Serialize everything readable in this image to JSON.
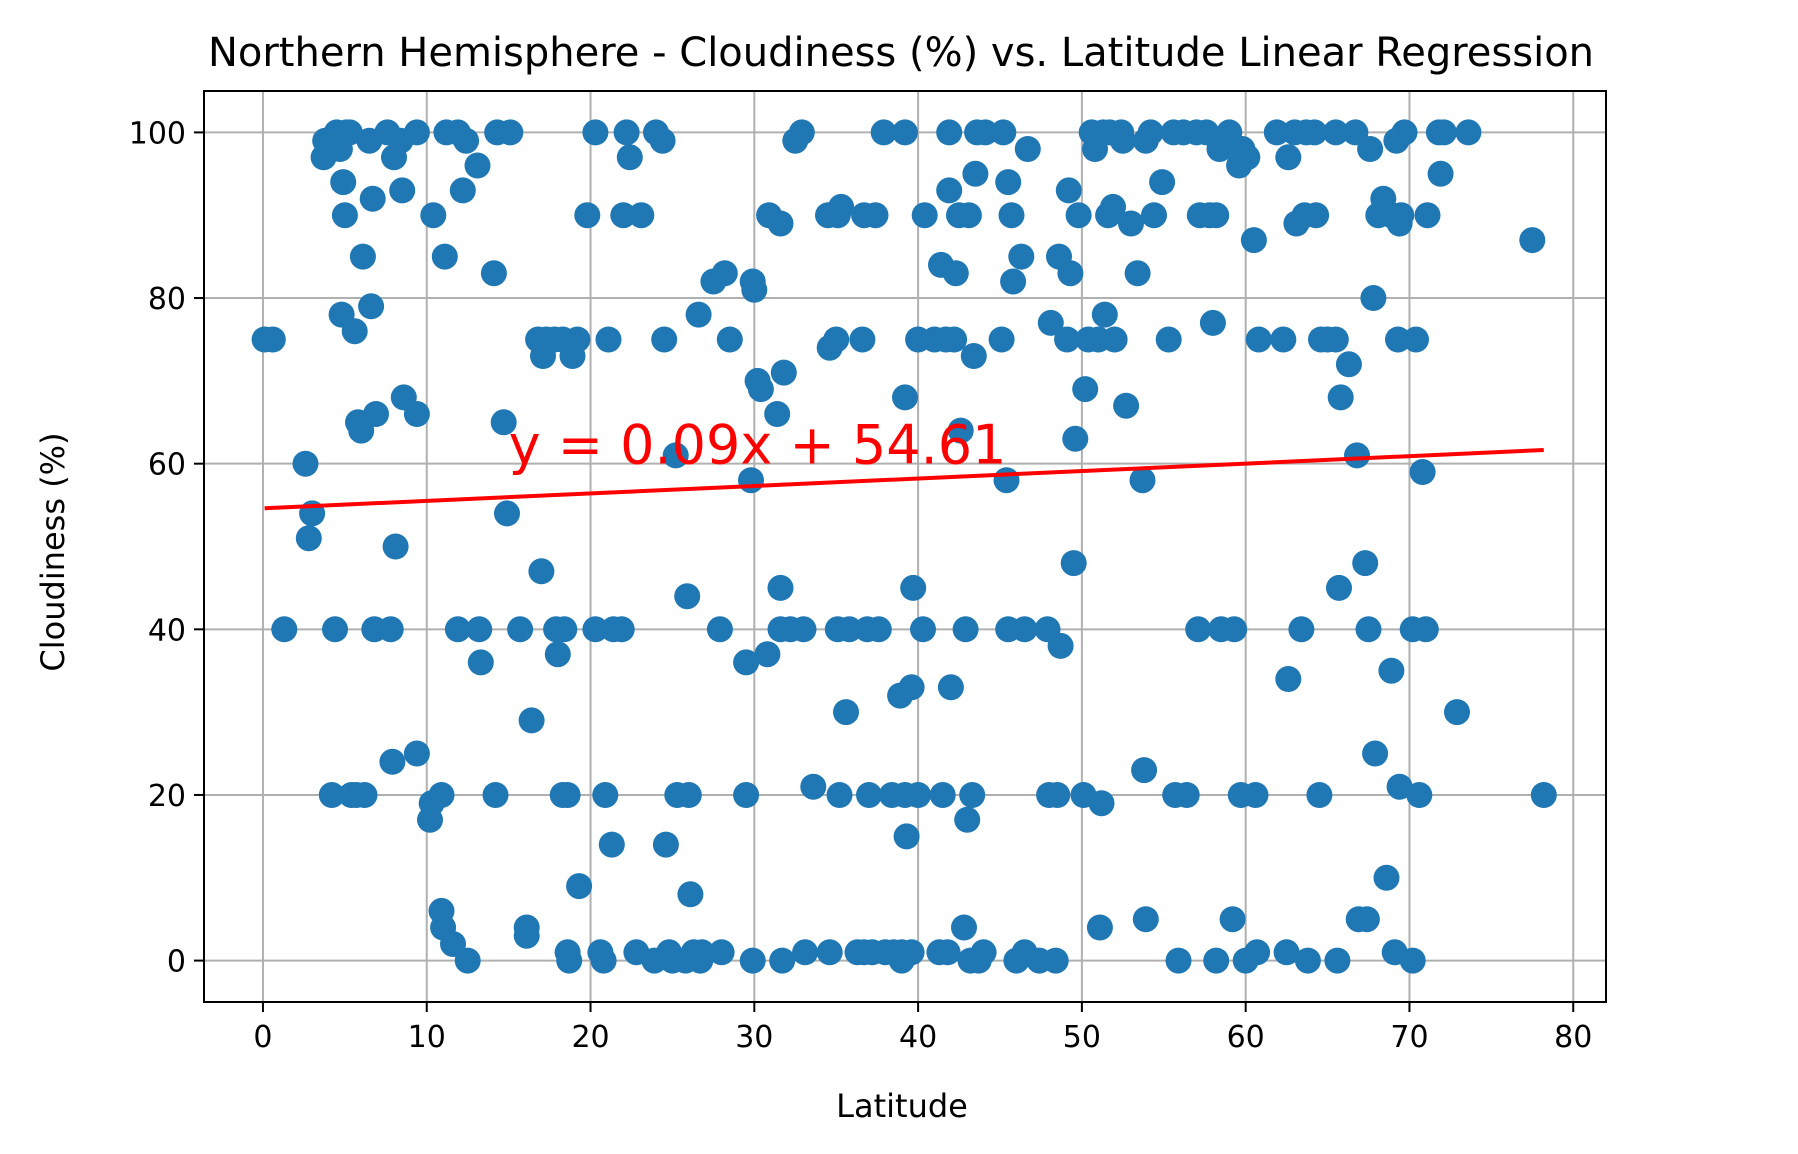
{
  "chart_data": {
    "type": "scatter",
    "title": "Northern Hemisphere - Cloudiness (%) vs. Latitude Linear Regression",
    "xlabel": "Latitude",
    "ylabel": "Cloudiness (%)",
    "xlim": [
      -3.6,
      82
    ],
    "ylim": [
      -5,
      105
    ],
    "xticks": [
      0,
      10,
      20,
      30,
      40,
      50,
      60,
      70,
      80
    ],
    "yticks": [
      0,
      20,
      40,
      60,
      80,
      100
    ],
    "grid": true,
    "point_color": "#1f77b4",
    "regression": {
      "slope": 0.09,
      "intercept": 54.61,
      "x_range": [
        0.1,
        78.2
      ],
      "color": "#ff0000",
      "equation_label": "y = 0.09x + 54.61",
      "label_at": [
        15,
        60
      ]
    },
    "points": [
      [
        0.1,
        75
      ],
      [
        0.6,
        75
      ],
      [
        1.3,
        40
      ],
      [
        2.6,
        60
      ],
      [
        2.8,
        51
      ],
      [
        3.0,
        54
      ],
      [
        3.7,
        97
      ],
      [
        3.8,
        99
      ],
      [
        4.2,
        20
      ],
      [
        4.3,
        99
      ],
      [
        4.4,
        40
      ],
      [
        4.5,
        100
      ],
      [
        4.7,
        98
      ],
      [
        4.8,
        78
      ],
      [
        4.9,
        94
      ],
      [
        5.0,
        90
      ],
      [
        5.1,
        100
      ],
      [
        5.3,
        100
      ],
      [
        5.4,
        20
      ],
      [
        5.6,
        76
      ],
      [
        5.7,
        20
      ],
      [
        5.8,
        65
      ],
      [
        6.0,
        64
      ],
      [
        6.1,
        85
      ],
      [
        6.2,
        20
      ],
      [
        6.5,
        99
      ],
      [
        6.6,
        79
      ],
      [
        6.7,
        92
      ],
      [
        6.8,
        40
      ],
      [
        6.9,
        66
      ],
      [
        7.6,
        100
      ],
      [
        7.8,
        40
      ],
      [
        7.9,
        24
      ],
      [
        8.0,
        97
      ],
      [
        8.1,
        50
      ],
      [
        8.4,
        99
      ],
      [
        8.5,
        93
      ],
      [
        8.6,
        68
      ],
      [
        9.4,
        100
      ],
      [
        9.4,
        66
      ],
      [
        9.4,
        25
      ],
      [
        10.2,
        17
      ],
      [
        10.3,
        19
      ],
      [
        10.4,
        90
      ],
      [
        10.9,
        20
      ],
      [
        10.9,
        6
      ],
      [
        11.0,
        4
      ],
      [
        11.1,
        85
      ],
      [
        11.2,
        100
      ],
      [
        11.6,
        2
      ],
      [
        11.9,
        100
      ],
      [
        11.9,
        40
      ],
      [
        12.2,
        93
      ],
      [
        12.4,
        99
      ],
      [
        12.5,
        0
      ],
      [
        13.1,
        96
      ],
      [
        13.2,
        40
      ],
      [
        13.3,
        36
      ],
      [
        14.1,
        83
      ],
      [
        14.2,
        20
      ],
      [
        14.3,
        100
      ],
      [
        14.7,
        65
      ],
      [
        14.9,
        54
      ],
      [
        15.1,
        100
      ],
      [
        15.7,
        40
      ],
      [
        16.1,
        4
      ],
      [
        16.1,
        3
      ],
      [
        16.4,
        29
      ],
      [
        16.8,
        75
      ],
      [
        17.0,
        47
      ],
      [
        17.1,
        73
      ],
      [
        17.3,
        75
      ],
      [
        17.8,
        75
      ],
      [
        17.9,
        40
      ],
      [
        18.0,
        37
      ],
      [
        18.3,
        75
      ],
      [
        18.3,
        20
      ],
      [
        18.4,
        40
      ],
      [
        18.6,
        20
      ],
      [
        18.6,
        1
      ],
      [
        18.7,
        0
      ],
      [
        18.9,
        73
      ],
      [
        19.2,
        75
      ],
      [
        19.3,
        9
      ],
      [
        19.8,
        90
      ],
      [
        20.3,
        100
      ],
      [
        20.3,
        40
      ],
      [
        20.6,
        1
      ],
      [
        20.8,
        0
      ],
      [
        20.9,
        20
      ],
      [
        21.1,
        75
      ],
      [
        21.3,
        14
      ],
      [
        21.4,
        40
      ],
      [
        21.9,
        40
      ],
      [
        22.0,
        90
      ],
      [
        22.2,
        100
      ],
      [
        22.4,
        97
      ],
      [
        22.8,
        1
      ],
      [
        23.1,
        90
      ],
      [
        23.9,
        0
      ],
      [
        24.0,
        100
      ],
      [
        24.4,
        99
      ],
      [
        24.5,
        75
      ],
      [
        24.6,
        14
      ],
      [
        24.8,
        1
      ],
      [
        25.0,
        0
      ],
      [
        25.2,
        61
      ],
      [
        25.3,
        20
      ],
      [
        25.8,
        0
      ],
      [
        25.9,
        44
      ],
      [
        26.0,
        20
      ],
      [
        26.1,
        8
      ],
      [
        26.3,
        1
      ],
      [
        26.6,
        78
      ],
      [
        26.7,
        0
      ],
      [
        26.8,
        1
      ],
      [
        27.5,
        82
      ],
      [
        27.9,
        40
      ],
      [
        28.0,
        1
      ],
      [
        28.2,
        83
      ],
      [
        28.5,
        75
      ],
      [
        29.5,
        20
      ],
      [
        29.5,
        36
      ],
      [
        29.8,
        58
      ],
      [
        29.9,
        0
      ],
      [
        29.9,
        82
      ],
      [
        30.0,
        81
      ],
      [
        30.2,
        70
      ],
      [
        30.4,
        69
      ],
      [
        30.8,
        37
      ],
      [
        30.9,
        90
      ],
      [
        31.4,
        66
      ],
      [
        31.6,
        89
      ],
      [
        31.6,
        45
      ],
      [
        31.6,
        40
      ],
      [
        31.7,
        0
      ],
      [
        31.8,
        71
      ],
      [
        32.2,
        40
      ],
      [
        32.5,
        99
      ],
      [
        32.9,
        100
      ],
      [
        33.0,
        40
      ],
      [
        33.1,
        1
      ],
      [
        33.6,
        21
      ],
      [
        34.5,
        90
      ],
      [
        34.6,
        74
      ],
      [
        34.6,
        1
      ],
      [
        35.0,
        75
      ],
      [
        35.1,
        90
      ],
      [
        35.1,
        40
      ],
      [
        35.2,
        20
      ],
      [
        35.3,
        91
      ],
      [
        35.6,
        30
      ],
      [
        35.8,
        40
      ],
      [
        36.3,
        1
      ],
      [
        36.6,
        75
      ],
      [
        36.7,
        90
      ],
      [
        36.7,
        1
      ],
      [
        36.9,
        40
      ],
      [
        37.0,
        20
      ],
      [
        37.2,
        1
      ],
      [
        37.4,
        90
      ],
      [
        37.6,
        40
      ],
      [
        37.9,
        100
      ],
      [
        38.0,
        1
      ],
      [
        38.4,
        20
      ],
      [
        38.5,
        1
      ],
      [
        38.9,
        32
      ],
      [
        39.0,
        1
      ],
      [
        39.0,
        0
      ],
      [
        39.2,
        100
      ],
      [
        39.2,
        68
      ],
      [
        39.2,
        20
      ],
      [
        39.3,
        15
      ],
      [
        39.6,
        33
      ],
      [
        39.6,
        1
      ],
      [
        39.7,
        45
      ],
      [
        40.0,
        75
      ],
      [
        40.0,
        20
      ],
      [
        40.3,
        40
      ],
      [
        40.4,
        90
      ],
      [
        41.0,
        75
      ],
      [
        41.3,
        1
      ],
      [
        41.4,
        84
      ],
      [
        41.5,
        20
      ],
      [
        41.7,
        75
      ],
      [
        41.8,
        1
      ],
      [
        41.9,
        100
      ],
      [
        41.9,
        93
      ],
      [
        42.0,
        33
      ],
      [
        42.2,
        75
      ],
      [
        42.3,
        83
      ],
      [
        42.5,
        90
      ],
      [
        42.6,
        64
      ],
      [
        42.8,
        4
      ],
      [
        42.9,
        40
      ],
      [
        43.0,
        17
      ],
      [
        43.1,
        90
      ],
      [
        43.2,
        0
      ],
      [
        43.3,
        20
      ],
      [
        43.4,
        73
      ],
      [
        43.5,
        95
      ],
      [
        43.6,
        100
      ],
      [
        43.7,
        0
      ],
      [
        44.0,
        1
      ],
      [
        44.1,
        100
      ],
      [
        45.1,
        75
      ],
      [
        45.2,
        100
      ],
      [
        45.4,
        58
      ],
      [
        45.5,
        94
      ],
      [
        45.5,
        40
      ],
      [
        45.7,
        90
      ],
      [
        45.8,
        82
      ],
      [
        46.0,
        0
      ],
      [
        46.3,
        85
      ],
      [
        46.5,
        40
      ],
      [
        46.5,
        1
      ],
      [
        46.7,
        98
      ],
      [
        47.4,
        0
      ],
      [
        47.9,
        40
      ],
      [
        48.0,
        20
      ],
      [
        48.1,
        77
      ],
      [
        48.4,
        0
      ],
      [
        48.5,
        20
      ],
      [
        48.6,
        85
      ],
      [
        48.7,
        38
      ],
      [
        49.1,
        75
      ],
      [
        49.2,
        93
      ],
      [
        49.3,
        83
      ],
      [
        49.5,
        48
      ],
      [
        49.6,
        63
      ],
      [
        49.8,
        90
      ],
      [
        50.1,
        20
      ],
      [
        50.2,
        69
      ],
      [
        50.4,
        75
      ],
      [
        50.6,
        100
      ],
      [
        50.8,
        98
      ],
      [
        51.0,
        75
      ],
      [
        51.1,
        4
      ],
      [
        51.2,
        19
      ],
      [
        51.3,
        100
      ],
      [
        51.4,
        78
      ],
      [
        51.6,
        90
      ],
      [
        51.7,
        100
      ],
      [
        51.9,
        91
      ],
      [
        52.0,
        75
      ],
      [
        52.4,
        100
      ],
      [
        52.5,
        99
      ],
      [
        52.7,
        67
      ],
      [
        53.0,
        89
      ],
      [
        53.4,
        83
      ],
      [
        53.7,
        58
      ],
      [
        53.8,
        23
      ],
      [
        53.9,
        5
      ],
      [
        53.9,
        99
      ],
      [
        54.2,
        100
      ],
      [
        54.4,
        90
      ],
      [
        54.9,
        94
      ],
      [
        55.3,
        75
      ],
      [
        55.6,
        100
      ],
      [
        55.7,
        20
      ],
      [
        55.9,
        0
      ],
      [
        56.2,
        100
      ],
      [
        56.4,
        20
      ],
      [
        57.0,
        100
      ],
      [
        57.1,
        40
      ],
      [
        57.2,
        90
      ],
      [
        57.6,
        100
      ],
      [
        57.8,
        90
      ],
      [
        58.0,
        77
      ],
      [
        58.2,
        90
      ],
      [
        58.2,
        0
      ],
      [
        58.4,
        98
      ],
      [
        58.5,
        40
      ],
      [
        59.0,
        100
      ],
      [
        59.2,
        5
      ],
      [
        59.3,
        40
      ],
      [
        59.6,
        96
      ],
      [
        59.7,
        20
      ],
      [
        59.8,
        98
      ],
      [
        60.0,
        0
      ],
      [
        60.1,
        97
      ],
      [
        60.5,
        87
      ],
      [
        60.6,
        20
      ],
      [
        60.7,
        1
      ],
      [
        60.8,
        75
      ],
      [
        61.9,
        100
      ],
      [
        62.3,
        75
      ],
      [
        62.5,
        1
      ],
      [
        62.6,
        34
      ],
      [
        62.6,
        97
      ],
      [
        63.0,
        100
      ],
      [
        63.1,
        89
      ],
      [
        63.4,
        40
      ],
      [
        63.6,
        90
      ],
      [
        63.7,
        100
      ],
      [
        63.8,
        0
      ],
      [
        64.2,
        100
      ],
      [
        64.3,
        90
      ],
      [
        64.5,
        20
      ],
      [
        64.6,
        75
      ],
      [
        65.0,
        75
      ],
      [
        65.5,
        100
      ],
      [
        65.5,
        75
      ],
      [
        65.6,
        0
      ],
      [
        65.7,
        45
      ],
      [
        65.8,
        68
      ],
      [
        66.3,
        72
      ],
      [
        66.7,
        100
      ],
      [
        66.8,
        61
      ],
      [
        66.9,
        5
      ],
      [
        67.3,
        48
      ],
      [
        67.4,
        5
      ],
      [
        67.5,
        40
      ],
      [
        67.6,
        98
      ],
      [
        67.8,
        80
      ],
      [
        67.9,
        25
      ],
      [
        68.1,
        90
      ],
      [
        68.4,
        92
      ],
      [
        68.6,
        10
      ],
      [
        68.9,
        90
      ],
      [
        68.9,
        35
      ],
      [
        69.1,
        1
      ],
      [
        69.2,
        99
      ],
      [
        69.3,
        75
      ],
      [
        69.4,
        21
      ],
      [
        69.4,
        89
      ],
      [
        69.5,
        90
      ],
      [
        69.7,
        100
      ],
      [
        70.2,
        40
      ],
      [
        70.2,
        0
      ],
      [
        70.4,
        75
      ],
      [
        70.6,
        20
      ],
      [
        70.8,
        59
      ],
      [
        71.0,
        40
      ],
      [
        71.1,
        90
      ],
      [
        71.8,
        100
      ],
      [
        71.9,
        95
      ],
      [
        72.1,
        100
      ],
      [
        72.9,
        30
      ],
      [
        73.6,
        100
      ],
      [
        77.5,
        87
      ],
      [
        78.2,
        20
      ]
    ]
  }
}
